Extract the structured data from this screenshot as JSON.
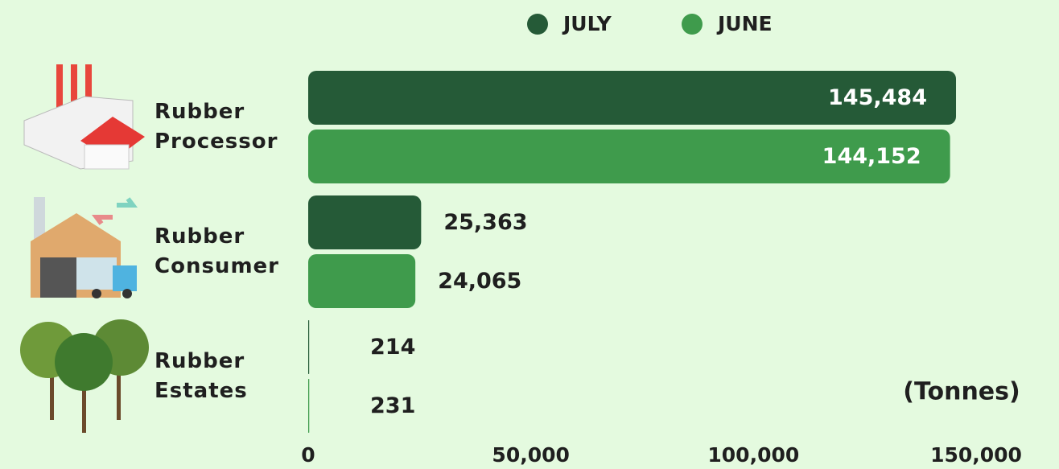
{
  "chart_data": {
    "type": "bar",
    "orientation": "horizontal",
    "categories": [
      "Rubber Processor",
      "Rubber Consumer",
      "Rubber Estates"
    ],
    "series": [
      {
        "name": "JULY",
        "color": "#255a37",
        "values": [
          145484,
          25363,
          214
        ],
        "value_labels": [
          "145,484",
          "25,363",
          "214"
        ]
      },
      {
        "name": "JUNE",
        "color": "#3f9b4c",
        "values": [
          144152,
          24065,
          231
        ],
        "value_labels": [
          "144,152",
          "24,065",
          "231"
        ]
      }
    ],
    "xlim": [
      0,
      150000
    ],
    "xticks": [
      0,
      {
        "value": 50000,
        "label": "50,000"
      },
      {
        "value": 100000,
        "label": "100,000"
      },
      {
        "value": 150000,
        "label": "150,000"
      }
    ],
    "annotation": "(Tonnes)",
    "grid": false
  }
}
